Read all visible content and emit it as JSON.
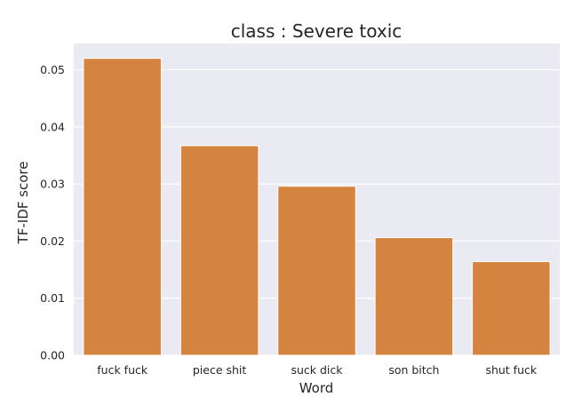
{
  "chart_data": {
    "type": "bar",
    "title": "class : Severe toxic",
    "xlabel": "Word",
    "ylabel": "TF-IDF score",
    "categories": [
      "fuck fuck",
      "piece shit",
      "suck dick",
      "son bitch",
      "shut fuck"
    ],
    "values": [
      0.052,
      0.0367,
      0.0296,
      0.0206,
      0.0164
    ],
    "ylim": [
      0,
      0.0546
    ],
    "yticks": [
      0.0,
      0.01,
      0.02,
      0.03,
      0.04,
      0.05
    ],
    "ytick_labels": [
      "0.00",
      "0.01",
      "0.02",
      "0.03",
      "0.04",
      "0.05"
    ],
    "grid": true,
    "colors": {
      "bar": "#D5843F",
      "plot_background": "#EAEAF2",
      "grid": "#FFFFFF",
      "text": "#262626"
    }
  }
}
